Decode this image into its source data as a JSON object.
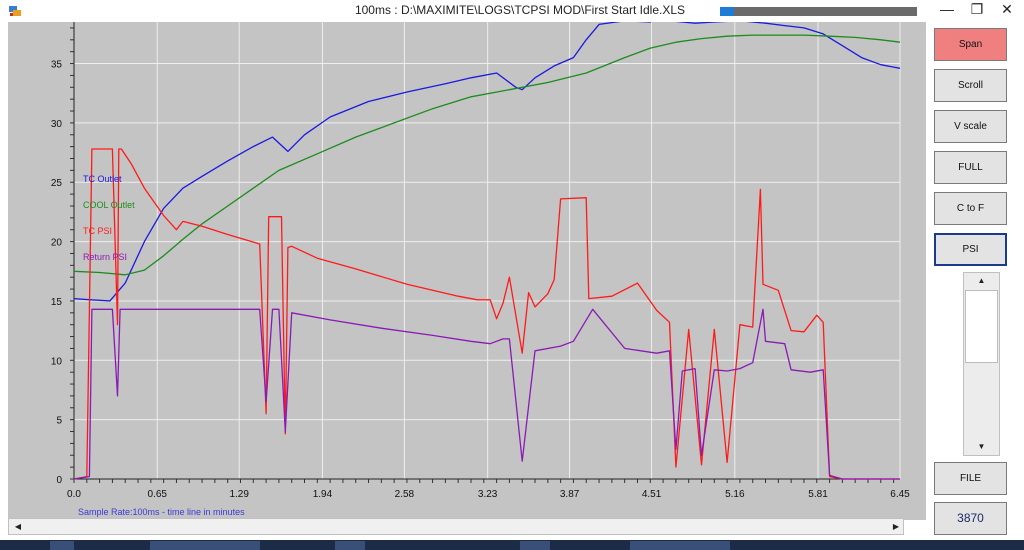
{
  "window": {
    "title": "100ms : D:\\MAXIMITE\\LOGS\\TCPSI MOD\\First Start Idle.XLS",
    "progress": 0.07,
    "minimize_glyph": "—",
    "restore_glyph": "❐",
    "close_glyph": "✕"
  },
  "side_buttons": [
    {
      "label": "Span",
      "state": "active"
    },
    {
      "label": "Scroll",
      "state": "normal"
    },
    {
      "label": "V scale",
      "state": "normal"
    },
    {
      "label": "FULL",
      "state": "normal"
    },
    {
      "label": "C to F",
      "state": "normal"
    },
    {
      "label": "PSI",
      "state": "selected"
    }
  ],
  "file_button": {
    "label": "FILE"
  },
  "counter": {
    "value": "3870"
  },
  "vscroll": {
    "up": "▲",
    "down": "▼"
  },
  "hscroll": {
    "left": "◀",
    "right": "▶"
  },
  "icons": [
    "app-icon",
    "minimize-icon",
    "restore-icon",
    "close-icon"
  ],
  "colors": {
    "tc_outlet": "#1a1ae0",
    "cool_outlet": "#1c8c1c",
    "tc_psi": "#ff1a1a",
    "return_psi": "#8a1ab4",
    "plot_bg": "#c4c4c4",
    "grid": "#eeeeee",
    "caption": "#3a3ad8"
  },
  "chart_data": {
    "type": "line",
    "caption": "Sample Rate:100ms - time line in minutes",
    "x_ticks": [
      "0.0",
      "0.65",
      "1.29",
      "1.94",
      "2.58",
      "3.23",
      "3.87",
      "4.51",
      "5.16",
      "5.81",
      "6.45"
    ],
    "y_ticks": [
      "0",
      "5",
      "10",
      "15",
      "20",
      "25",
      "30",
      "35"
    ],
    "xlim": [
      0,
      6.45
    ],
    "ylim": [
      0,
      38.5
    ],
    "grid": true,
    "legend_position": "left-middle",
    "series": [
      {
        "name": "TC Outlet",
        "color": "#1a1ae0",
        "x": [
          0,
          0.13,
          0.28,
          0.4,
          0.55,
          0.7,
          0.85,
          1.0,
          1.2,
          1.4,
          1.55,
          1.67,
          1.8,
          2.0,
          2.3,
          2.6,
          2.9,
          3.1,
          3.3,
          3.45,
          3.5,
          3.6,
          3.75,
          3.9,
          4.0,
          4.1,
          4.3,
          4.5,
          4.55,
          4.65,
          4.85,
          5.0,
          5.2,
          5.4,
          5.55,
          5.7,
          5.85,
          6.0,
          6.15,
          6.3,
          6.45
        ],
        "y": [
          15.2,
          15.1,
          15.0,
          16.5,
          20.0,
          22.8,
          24.5,
          25.5,
          26.8,
          28.0,
          28.8,
          27.6,
          29.0,
          30.5,
          31.8,
          32.6,
          33.3,
          33.8,
          34.2,
          33.0,
          32.8,
          33.8,
          34.8,
          35.5,
          37.0,
          38.3,
          38.6,
          38.5,
          38.8,
          38.6,
          38.4,
          38.5,
          38.6,
          38.4,
          38.2,
          38.0,
          37.5,
          36.5,
          35.5,
          34.9,
          34.6
        ]
      },
      {
        "name": "COOL Outlet",
        "color": "#1c8c1c",
        "x": [
          0,
          0.2,
          0.4,
          0.55,
          0.7,
          0.85,
          1.0,
          1.2,
          1.4,
          1.6,
          1.9,
          2.2,
          2.5,
          2.8,
          3.1,
          3.4,
          3.7,
          4.0,
          4.3,
          4.5,
          4.7,
          4.9,
          5.1,
          5.3,
          5.5,
          5.7,
          5.9,
          6.1,
          6.3,
          6.45
        ],
        "y": [
          17.5,
          17.4,
          17.2,
          17.6,
          18.8,
          20.2,
          21.5,
          23.0,
          24.5,
          26.0,
          27.4,
          28.8,
          30.0,
          31.2,
          32.2,
          32.8,
          33.4,
          34.2,
          35.5,
          36.3,
          36.8,
          37.1,
          37.3,
          37.4,
          37.4,
          37.4,
          37.3,
          37.2,
          37.0,
          36.8
        ]
      },
      {
        "name": "TC PSI",
        "color": "#ff1a1a",
        "x": [
          0,
          0.1,
          0.14,
          0.16,
          0.3,
          0.34,
          0.35,
          0.37,
          0.45,
          0.55,
          0.7,
          0.8,
          0.85,
          1.0,
          1.2,
          1.45,
          1.5,
          1.52,
          1.62,
          1.65,
          1.67,
          1.7,
          1.9,
          2.2,
          2.6,
          3.0,
          3.15,
          3.25,
          3.3,
          3.35,
          3.4,
          3.5,
          3.55,
          3.6,
          3.7,
          3.75,
          3.8,
          4.0,
          4.02,
          4.2,
          4.4,
          4.55,
          4.65,
          4.7,
          4.8,
          4.9,
          5.0,
          5.1,
          5.2,
          5.3,
          5.36,
          5.38,
          5.5,
          5.6,
          5.7,
          5.8,
          5.85,
          5.9,
          6.0,
          6.2,
          6.45
        ],
        "y": [
          0,
          0.2,
          27.8,
          27.8,
          27.8,
          13.0,
          27.8,
          27.8,
          26.5,
          24.5,
          22.2,
          21.0,
          21.7,
          21.3,
          20.6,
          19.8,
          5.5,
          22.1,
          22.1,
          3.8,
          19.5,
          19.6,
          18.6,
          17.7,
          16.4,
          15.4,
          15.1,
          15.1,
          13.5,
          14.8,
          17.0,
          10.6,
          15.7,
          14.5,
          15.6,
          16.8,
          23.6,
          23.7,
          15.2,
          15.4,
          16.5,
          14.2,
          13.2,
          1.0,
          12.6,
          1.2,
          12.6,
          1.4,
          13.0,
          12.8,
          24.4,
          16.4,
          15.9,
          12.5,
          12.4,
          13.8,
          13.2,
          0.2,
          0.0,
          0.0,
          0.0
        ]
      },
      {
        "name": "Return PSI",
        "color": "#8a1ab4",
        "x": [
          0,
          0.12,
          0.14,
          0.3,
          0.34,
          0.36,
          0.5,
          1.0,
          1.45,
          1.5,
          1.55,
          1.6,
          1.65,
          1.7,
          2.0,
          2.4,
          2.8,
          3.1,
          3.25,
          3.35,
          3.4,
          3.5,
          3.6,
          3.8,
          3.9,
          4.05,
          4.3,
          4.55,
          4.65,
          4.7,
          4.75,
          4.85,
          4.9,
          5.0,
          5.1,
          5.2,
          5.3,
          5.38,
          5.4,
          5.55,
          5.6,
          5.75,
          5.85,
          5.9,
          6.0,
          6.45
        ],
        "y": [
          0,
          0.2,
          14.3,
          14.3,
          7.0,
          14.3,
          14.3,
          14.3,
          14.3,
          6.5,
          14.3,
          14.3,
          4.0,
          14.0,
          13.4,
          12.7,
          12.1,
          11.6,
          11.4,
          11.8,
          11.8,
          1.5,
          10.8,
          11.2,
          11.6,
          14.3,
          11.0,
          10.6,
          10.8,
          2.5,
          9.1,
          9.3,
          2.0,
          9.2,
          9.1,
          9.3,
          9.8,
          14.3,
          11.6,
          11.4,
          9.2,
          9.0,
          9.2,
          0.3,
          0.0,
          0.0
        ]
      }
    ]
  }
}
